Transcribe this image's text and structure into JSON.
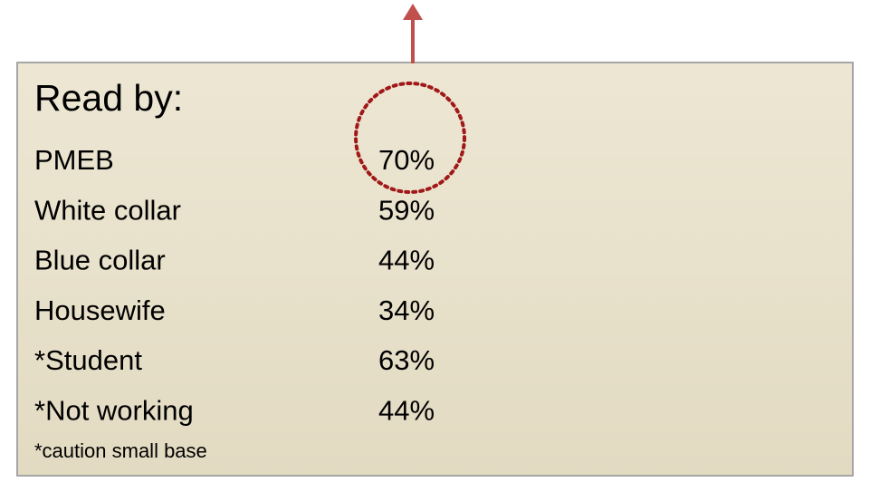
{
  "title": "Read by:",
  "rows": [
    {
      "label": "PMEB",
      "value": "70%"
    },
    {
      "label": "White collar",
      "value": "59%"
    },
    {
      "label": "Blue collar",
      "value": "44%"
    },
    {
      "label": "Housewife",
      "value": "34%"
    },
    {
      "label": "*Student",
      "value": "63%"
    },
    {
      "label": "*Not working",
      "value": "44%"
    }
  ],
  "footnote": "*caution small base"
}
